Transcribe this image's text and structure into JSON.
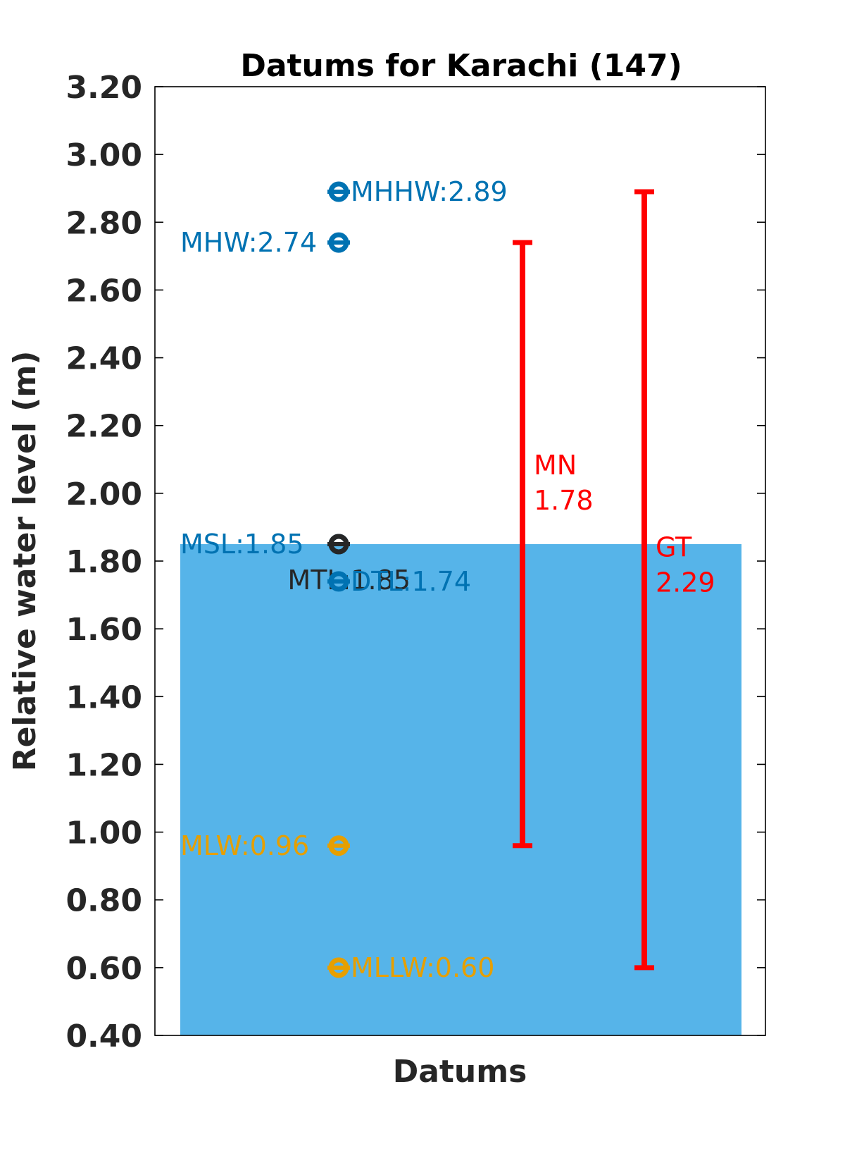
{
  "chart_data": {
    "type": "bar",
    "title": "Datums for Karachi (147)",
    "xlabel": "Datums",
    "ylabel": "Relative water level (m)",
    "ylim": [
      0.4,
      3.2
    ],
    "yticks": [
      "0.40",
      "0.60",
      "0.80",
      "1.00",
      "1.20",
      "1.40",
      "1.60",
      "1.80",
      "2.00",
      "2.20",
      "2.40",
      "2.60",
      "2.80",
      "3.00",
      "3.20"
    ],
    "grid": false,
    "bar": {
      "value": 1.85,
      "color": "#56B4E9"
    },
    "datums": [
      {
        "name": "MHHW",
        "value": 2.89,
        "label": "MHHW:2.89",
        "color": "#0072B2",
        "side": "right"
      },
      {
        "name": "MHW",
        "value": 2.74,
        "label": "MHW:2.74",
        "color": "#0072B2",
        "side": "left"
      },
      {
        "name": "MSL",
        "value": 1.85,
        "label": "MSL:1.85",
        "color": "#0072B2",
        "side": "left"
      },
      {
        "name": "MTL",
        "value": 1.85,
        "label": "MTL:1.85",
        "color": "#262626",
        "side": "left-offset"
      },
      {
        "name": "DTL",
        "value": 1.74,
        "label": "DTL:1.74",
        "color": "#0072B2",
        "side": "right"
      },
      {
        "name": "MLW",
        "value": 0.96,
        "label": "MLW:0.96",
        "color": "#E69F00",
        "side": "left"
      },
      {
        "name": "MLLW",
        "value": 0.6,
        "label": "MLLW:0.60",
        "color": "#E69F00",
        "side": "right"
      }
    ],
    "ranges": [
      {
        "name": "MN",
        "low": 0.96,
        "high": 2.74,
        "label_name": "MN",
        "label_value": "1.78",
        "color": "#FF0000"
      },
      {
        "name": "GT",
        "low": 0.6,
        "high": 2.89,
        "label_name": "GT",
        "label_value": "2.29",
        "color": "#FF0000"
      }
    ]
  }
}
